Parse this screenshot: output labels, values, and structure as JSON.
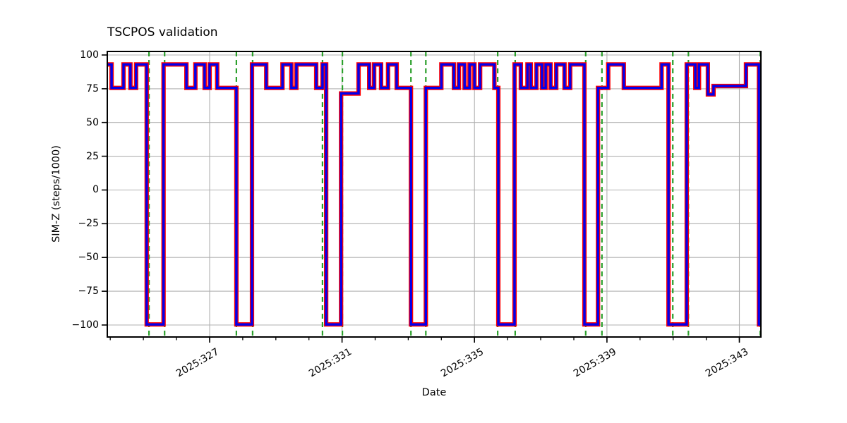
{
  "title": "TSCPOS validation",
  "axes": {
    "xlabel": "Date",
    "ylabel": "SIM-Z (steps/1000)"
  },
  "colors": {
    "outline_series": "#ff0000",
    "core_series": "#0000ee",
    "event_vline": "#2ca02c",
    "grid": "#b0b0b0",
    "spine": "#000000",
    "background": "#ffffff",
    "text": "#000000"
  },
  "chart_data": {
    "type": "line",
    "title": "TSCPOS validation",
    "xlabel": "Date",
    "ylabel": "SIM-Z (steps/1000)",
    "x_unit": "year:day-of-year",
    "xlim": [
      323.91,
      343.65
    ],
    "ylim": [
      -108.9,
      102.6
    ],
    "grid": true,
    "x_major_ticks": [
      327,
      331,
      335,
      339,
      343
    ],
    "x_major_tick_labels": [
      "2025:327",
      "2025:331",
      "2025:335",
      "2025:339",
      "2025:343"
    ],
    "x_minor_tick_start": 324,
    "x_minor_tick_end": 343,
    "x_minor_tick_step": 1,
    "y_ticks": [
      100,
      75,
      50,
      25,
      0,
      -25,
      -50,
      -75,
      -100
    ],
    "y_tick_labels": [
      "100",
      "75",
      "50",
      "25",
      "0",
      "−25",
      "−50",
      "−75",
      "−100"
    ],
    "series_note": "Two overlaid identical step series: thick red underlay and thinner blue overlay",
    "step_levels": {
      "acis_i": 93,
      "acis_s": 75.6,
      "offset_low": 71.5,
      "offset_mid": 77,
      "small_dip": 70.8,
      "hrc_s": -99.6
    },
    "step_segments": [
      [
        323.91,
        324.04,
        93
      ],
      [
        324.04,
        324.4,
        75.6
      ],
      [
        324.4,
        324.61,
        93
      ],
      [
        324.61,
        324.78,
        75.6
      ],
      [
        324.78,
        325.1,
        93
      ],
      [
        325.1,
        325.61,
        -99.6
      ],
      [
        325.61,
        326.3,
        93
      ],
      [
        326.3,
        326.57,
        75.6
      ],
      [
        326.57,
        326.85,
        93
      ],
      [
        326.85,
        327.0,
        75.6
      ],
      [
        327.0,
        327.23,
        93
      ],
      [
        327.23,
        327.81,
        75.6
      ],
      [
        327.81,
        328.28,
        -99.6
      ],
      [
        328.28,
        328.71,
        93
      ],
      [
        328.71,
        329.2,
        75.6
      ],
      [
        329.2,
        329.47,
        93
      ],
      [
        329.47,
        329.62,
        75.6
      ],
      [
        329.62,
        330.22,
        93
      ],
      [
        330.22,
        330.41,
        75.6
      ],
      [
        330.41,
        330.52,
        93
      ],
      [
        330.52,
        330.97,
        -99.6
      ],
      [
        330.97,
        331.5,
        71.5
      ],
      [
        331.5,
        331.82,
        93
      ],
      [
        331.82,
        331.97,
        75.6
      ],
      [
        331.97,
        332.18,
        93
      ],
      [
        332.18,
        332.39,
        75.6
      ],
      [
        332.39,
        332.65,
        93
      ],
      [
        332.65,
        333.08,
        75.6
      ],
      [
        333.08,
        333.53,
        -99.6
      ],
      [
        333.53,
        334.0,
        75.6
      ],
      [
        334.0,
        334.38,
        93
      ],
      [
        334.38,
        334.53,
        75.6
      ],
      [
        334.53,
        334.7,
        93
      ],
      [
        334.7,
        334.85,
        75.6
      ],
      [
        334.85,
        335.0,
        93
      ],
      [
        335.0,
        335.17,
        75.6
      ],
      [
        335.17,
        335.6,
        93
      ],
      [
        335.6,
        335.72,
        75.6
      ],
      [
        335.72,
        336.21,
        -99.6
      ],
      [
        336.21,
        336.4,
        93
      ],
      [
        336.4,
        336.6,
        75.6
      ],
      [
        336.6,
        336.7,
        93
      ],
      [
        336.7,
        336.87,
        75.6
      ],
      [
        336.87,
        337.04,
        93
      ],
      [
        337.04,
        337.15,
        75.6
      ],
      [
        337.15,
        337.3,
        93
      ],
      [
        337.3,
        337.47,
        75.6
      ],
      [
        337.47,
        337.72,
        93
      ],
      [
        337.72,
        337.89,
        75.6
      ],
      [
        337.89,
        338.32,
        93
      ],
      [
        338.32,
        338.73,
        -99.6
      ],
      [
        338.73,
        339.04,
        75.6
      ],
      [
        339.04,
        339.51,
        93
      ],
      [
        339.51,
        340.65,
        75.6
      ],
      [
        340.65,
        340.86,
        93
      ],
      [
        340.86,
        341.41,
        -99.6
      ],
      [
        341.41,
        341.67,
        93
      ],
      [
        341.67,
        341.78,
        75.6
      ],
      [
        341.78,
        342.05,
        93
      ],
      [
        342.05,
        342.22,
        70.8
      ],
      [
        342.22,
        343.2,
        77
      ],
      [
        343.2,
        343.59,
        93
      ],
      [
        343.59,
        343.65,
        -99.6
      ]
    ],
    "event_vlines_days": [
      325.17,
      325.64,
      327.81,
      328.3,
      330.41,
      331.01,
      333.08,
      333.53,
      335.7,
      336.23,
      338.36,
      338.85,
      340.99,
      341.46,
      343.63
    ],
    "legend": null
  }
}
